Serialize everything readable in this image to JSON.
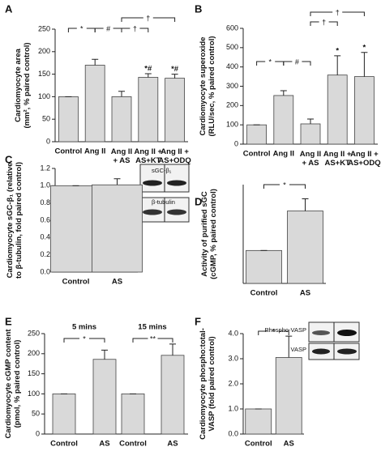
{
  "chart_data": [
    {
      "type": "bar",
      "panel": "A",
      "ylabel": "Cardiomyocyte area\n(mm², % paired control)",
      "categories": [
        "Control",
        "Ang II",
        "Ang II\n+ AS",
        "Ang II +\nAS+KT",
        "Ang II +\nAS+ODQ"
      ],
      "values": [
        100,
        170,
        100,
        143,
        141
      ],
      "errors": [
        0,
        13,
        12,
        8,
        9
      ],
      "bar_annotations": [
        null,
        null,
        null,
        "*#",
        "*#"
      ],
      "annotations": [
        "*",
        "#",
        "†",
        "†"
      ],
      "color": "#d9d9d9",
      "ylim": [
        0,
        250
      ],
      "yticks": [
        0,
        50,
        100,
        150,
        200,
        250
      ]
    },
    {
      "type": "bar",
      "panel": "B",
      "ylabel": "Cardiomyocyte superoxide\n(RLU/sec, % paired control)",
      "categories": [
        "Control",
        "Ang II",
        "Ang II\n+ AS",
        "Ang II +\nAS+KT",
        "Ang II +\nAS+ODQ"
      ],
      "values": [
        100,
        252,
        105,
        358,
        350
      ],
      "errors": [
        0,
        25,
        25,
        100,
        125
      ],
      "bar_annotations": [
        null,
        null,
        null,
        "*",
        "*"
      ],
      "annotations": [
        "*",
        "#",
        "†",
        "†"
      ],
      "color": "#d9d9d9",
      "ylim": [
        0,
        600
      ],
      "yticks": [
        0,
        100,
        200,
        300,
        400,
        500,
        600
      ]
    },
    {
      "type": "bar",
      "panel": "C",
      "ylabel": "Cardiomyocyte sGC-β₁ (relative\nto β-tubulin, fold paired control)",
      "categories": [
        "Control",
        "AS"
      ],
      "values": [
        1.0,
        1.01
      ],
      "errors": [
        0,
        0.07
      ],
      "blot_labels": [
        "sGC-β₁",
        "β-tubulin"
      ],
      "color": "#d9d9d9",
      "ylim": [
        0,
        1.2
      ],
      "yticks": [
        {
          "value": 0,
          "label": "0.0"
        },
        {
          "value": 0.2,
          "label": "0.2"
        },
        {
          "value": 0.4,
          "label": "0.4"
        },
        {
          "value": 0.6,
          "label": "0.6"
        },
        {
          "value": 0.8,
          "label": "0.8"
        },
        {
          "value": 1,
          "label": "1.0"
        },
        {
          "value": 1.2,
          "label": "1.2"
        }
      ]
    },
    {
      "type": "bar",
      "panel": "D",
      "ylabel": "Activity of purified sGC\n(cGMP, % paired control)",
      "categories": [
        "Control",
        "AS"
      ],
      "values": [
        100,
        220
      ],
      "errors": [
        0,
        37
      ],
      "annotations": [
        "*"
      ],
      "color": "#d9d9d9",
      "ylim": [
        0,
        300
      ]
    },
    {
      "type": "bar",
      "panel": "E",
      "ylabel": "Cardiomyocyte cGMP content\n(pmol, % paired control)",
      "categories": [
        "Control",
        "AS",
        "Control",
        "AS"
      ],
      "group_labels": [
        "5 mins",
        "15 mins"
      ],
      "values": [
        100,
        186,
        100,
        196
      ],
      "errors": [
        0,
        23,
        0,
        28
      ],
      "annotations": [
        "*",
        "**"
      ],
      "color": "#d9d9d9",
      "ylim": [
        0,
        250
      ],
      "yticks": [
        0,
        50,
        100,
        150,
        200,
        250
      ]
    },
    {
      "type": "bar",
      "panel": "F",
      "ylabel": "Cardiomyocyte phospho:total-\nVASP (fold paired control)",
      "categories": [
        "Control",
        "AS"
      ],
      "values": [
        1.0,
        3.05
      ],
      "errors": [
        0,
        0.85
      ],
      "annotations": [
        "*"
      ],
      "blot_labels": [
        "Phospho-VASP",
        "VASP"
      ],
      "color": "#d9d9d9",
      "ylim": [
        0,
        4
      ],
      "yticks": [
        {
          "value": 0,
          "label": "0.0"
        },
        {
          "value": 1,
          "label": "1.0"
        },
        {
          "value": 2,
          "label": "2.0"
        },
        {
          "value": 3,
          "label": "3.0"
        },
        {
          "value": 4,
          "label": "4.0"
        }
      ]
    }
  ]
}
